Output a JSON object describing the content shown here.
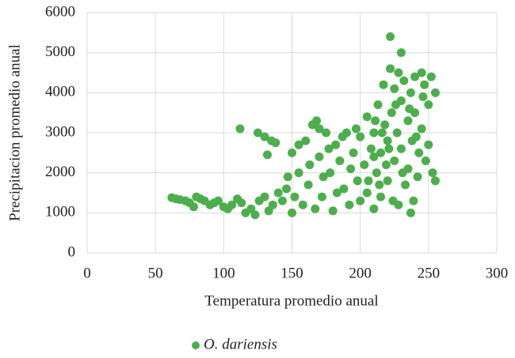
{
  "chart_data": {
    "type": "scatter",
    "x_label": "Temperatura promedio anual",
    "y_label": "Precipitacion promedio anual",
    "xlim": [
      0,
      300
    ],
    "xticks": [
      0,
      50,
      100,
      150,
      200,
      250,
      300
    ],
    "ylim": [
      0,
      6000
    ],
    "yticks": [
      0,
      1000,
      2000,
      3000,
      4000,
      5000,
      6000
    ],
    "grid": true,
    "legend": "bottom",
    "series": [
      {
        "name": "O. dariensis",
        "color": "#4cae4c",
        "x": [
          62,
          65,
          68,
          72,
          75,
          78,
          80,
          83,
          86,
          90,
          93,
          96,
          100,
          103,
          106,
          110,
          113,
          116,
          120,
          123,
          126,
          130,
          133,
          136,
          140,
          143,
          146,
          112,
          125,
          130,
          135,
          138,
          132,
          150,
          150,
          155,
          158,
          160,
          162,
          165,
          168,
          170,
          172,
          175,
          178,
          180,
          182,
          185,
          188,
          190,
          192,
          195,
          198,
          200,
          200,
          155,
          163,
          173,
          183,
          193,
          197,
          147,
          152,
          167,
          177,
          187,
          170,
          203,
          205,
          205,
          208,
          210,
          210,
          212,
          213,
          215,
          215,
          217,
          218,
          220,
          220,
          222,
          222,
          223,
          225,
          225,
          227,
          228,
          230,
          230,
          230,
          232,
          233,
          235,
          235,
          237,
          237,
          238,
          240,
          240,
          242,
          243,
          245,
          245,
          247,
          248,
          250,
          250,
          252,
          253,
          255,
          255,
          210,
          214,
          219,
          224,
          226,
          231,
          236,
          241,
          246,
          239,
          228,
          221,
          216,
          206,
          211
        ],
        "values": [
          1380,
          1350,
          1330,
          1300,
          1250,
          1150,
          1400,
          1350,
          1300,
          1200,
          1250,
          1300,
          1150,
          1100,
          1200,
          1350,
          1250,
          1000,
          1100,
          950,
          1300,
          1400,
          1050,
          1200,
          1500,
          1300,
          1600,
          3100,
          3000,
          2900,
          2800,
          2750,
          2450,
          2500,
          1000,
          2000,
          1200,
          2800,
          1700,
          3200,
          3300,
          2400,
          1400,
          3000,
          2000,
          1050,
          2700,
          2300,
          1600,
          3000,
          1200,
          2500,
          1800,
          2900,
          1300,
          2700,
          2200,
          1900,
          1500,
          2100,
          3100,
          1900,
          1400,
          1100,
          2600,
          2900,
          3100,
          2200,
          3400,
          1500,
          2600,
          1100,
          3000,
          2000,
          3700,
          2500,
          1400,
          4200,
          3200,
          2800,
          1800,
          4600,
          5400,
          3500,
          2300,
          4100,
          3000,
          1200,
          5000,
          3800,
          2600,
          4300,
          1700,
          3300,
          2100,
          4000,
          1000,
          2800,
          4400,
          3500,
          1900,
          2500,
          4500,
          3100,
          4200,
          2300,
          3700,
          2700,
          4400,
          2000,
          4000,
          1800,
          2400,
          1700,
          2200,
          1300,
          3700,
          2000,
          3600,
          2900,
          3900,
          1300,
          4500,
          2600,
          3000,
          1800,
          3300
        ]
      }
    ]
  }
}
